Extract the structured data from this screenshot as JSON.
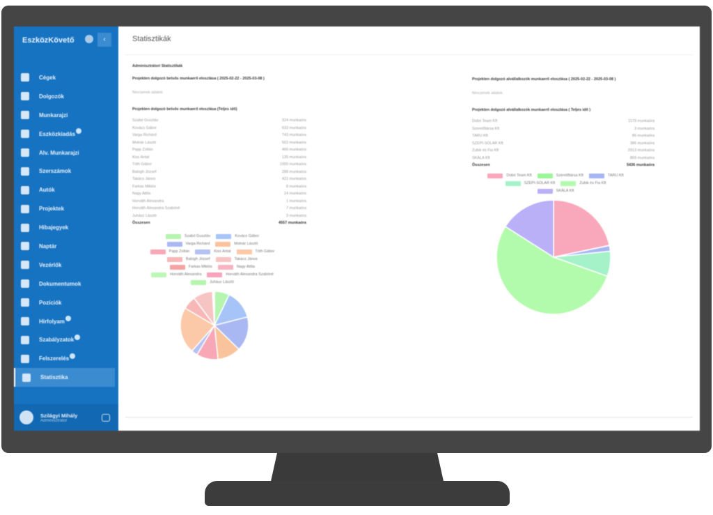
{
  "app": {
    "brand": "EszközKövető",
    "page_title": "Statisztikák"
  },
  "sidebar": {
    "items": [
      {
        "label": "Cégek",
        "badge": false
      },
      {
        "label": "Dolgozók",
        "badge": false
      },
      {
        "label": "Munkarajzi",
        "badge": false
      },
      {
        "label": "Eszközkiadás",
        "badge": true
      },
      {
        "label": "Alv. Munkarajzi",
        "badge": false
      },
      {
        "label": "Szerszámok",
        "badge": false
      },
      {
        "label": "Autók",
        "badge": false
      },
      {
        "label": "Projektek",
        "badge": false
      },
      {
        "label": "Hibajegyek",
        "badge": false
      },
      {
        "label": "Naptár",
        "badge": false
      },
      {
        "label": "Vezérlők",
        "badge": false
      },
      {
        "label": "Dokumentumok",
        "badge": false
      },
      {
        "label": "Pozíciók",
        "badge": false
      },
      {
        "label": "Hírfolyam",
        "badge": true
      },
      {
        "label": "Szabályzatok",
        "badge": true
      },
      {
        "label": "Felszerelés",
        "badge": true
      },
      {
        "label": "Statisztika",
        "badge": false,
        "active": true
      }
    ],
    "user": {
      "name": "Szilágyi Mihály",
      "role": "Adminisztrátor"
    }
  },
  "left": {
    "heading": "Adminisztrátori Statisztikák",
    "section1": "Projekten dolgozó belsős munkaerő eloszlása ( 2025-02-22 - 2025-03-08 )",
    "empty": "Nincsenek adatok",
    "section2": "Projekten dolgozó belsős munkaerő eloszlása (Teljes idő)",
    "rows": [
      {
        "name": "Szabó Gusztáv",
        "value": "324 munkaóra"
      },
      {
        "name": "Kovács Gábor",
        "value": "633 munkaóra"
      },
      {
        "name": "Varga Richárd",
        "value": "743 munkaóra"
      },
      {
        "name": "Molnár László",
        "value": "503 munkaóra"
      },
      {
        "name": "Papp Zoltán",
        "value": "466 munkaóra"
      },
      {
        "name": "Kiss Antal",
        "value": "135 munkaóra"
      },
      {
        "name": "Tóth Gábor",
        "value": "1000 munkaóra"
      },
      {
        "name": "Balogh József",
        "value": "288 munkaóra"
      },
      {
        "name": "Takács János",
        "value": "422 munkaóra"
      },
      {
        "name": "Farkas Miklós",
        "value": "8 munkaóra"
      },
      {
        "name": "Nagy Attila",
        "value": "24 munkaóra"
      },
      {
        "name": "Horváth Alexandra",
        "value": "1 munkaóra"
      },
      {
        "name": "Horváth Alexandra Szabóné",
        "value": "7 munkaóra"
      },
      {
        "name": "Juhász László",
        "value": "3 munkaóra"
      }
    ],
    "total_label": "Összesen",
    "total_value": "4557 munkaóra"
  },
  "right": {
    "section1": "Projekten dolgozó alvállalkozók munkaerő eloszlása ( 2025-02-22 - 2025-03-08 )",
    "empty": "Nincsenek adatok",
    "section2": "Projekten dolgozó alvállalkozók munkaerő eloszlása ( Teljes idő )",
    "rows": [
      {
        "name": "Dobó Team Kft",
        "value": "1179 munkaóra"
      },
      {
        "name": "Szerelőtársa Kft",
        "value": "3 munkaóra"
      },
      {
        "name": "TARU Kft",
        "value": "86 munkaóra"
      },
      {
        "name": "SZEPI-SOLAR Kft",
        "value": "386 munkaóra"
      },
      {
        "name": "Zubik és Fia Kft",
        "value": "2913 munkaóra"
      },
      {
        "name": "SKÁLA Kft",
        "value": "869 munkaóra"
      }
    ],
    "total_label": "Összesen",
    "total_value": "5436 munkaóra"
  },
  "chart_data": [
    {
      "type": "pie",
      "categories": [
        "Szabó Gusztáv",
        "Kovács Gábor",
        "Varga Richárd",
        "Molnár László",
        "Papp Zoltán",
        "Kiss Antal",
        "Tóth Gábor",
        "Balogh József",
        "Takács János",
        "Farkas Miklós",
        "Nagy Attila",
        "Horváth Alexandra",
        "Horváth Alexandra Szabóné",
        "Juhász László"
      ],
      "values": [
        324,
        633,
        743,
        503,
        466,
        135,
        1000,
        288,
        422,
        8,
        24,
        1,
        7,
        3
      ],
      "colors": [
        "#b5f5b0",
        "#a6c4f7",
        "#a9b8f2",
        "#f9c49c",
        "#f7a7b5",
        "#b3c2f3",
        "#fbc8a8",
        "#f7b7b7",
        "#f7c4c4",
        "#f3a3a3",
        "#f9b2c2",
        "#bdf7b8",
        "#f7a3bb",
        "#b5f5b0"
      ]
    },
    {
      "type": "pie",
      "categories": [
        "Dobó Team Kft",
        "Szerelőtársa Kft",
        "TARU Kft",
        "SZEPI-SOLAR Kft",
        "Zubik és Fia Kft",
        "SKÁLA Kft"
      ],
      "values": [
        1179,
        3,
        86,
        386,
        2913,
        869
      ],
      "colors": [
        "#f9a8bb",
        "#9df59a",
        "#a5b6f2",
        "#a5f2c9",
        "#b3fbac",
        "#b9b0f7"
      ]
    }
  ]
}
